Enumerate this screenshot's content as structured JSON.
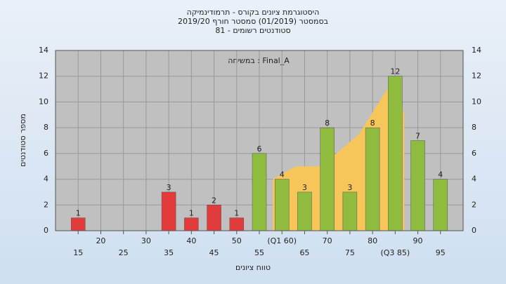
{
  "chart_data": {
    "type": "bar",
    "title": "היסטוגרמת ציונים בקורס - תרמודינמיקה",
    "subtitle": "בסמסטר (01/2019) סמסטר חורף 2019/20",
    "subtitle2": "סטודנטים רשומים - 81",
    "annotation": "במשיחה : Final_A",
    "x_label": "טווח ציונים",
    "y_label": "מספר סטודנטים",
    "x": [
      15,
      20,
      25,
      30,
      35,
      40,
      45,
      50,
      55,
      60,
      65,
      70,
      75,
      80,
      85,
      90,
      95
    ],
    "values": [
      1,
      0,
      0,
      0,
      3,
      1,
      2,
      1,
      6,
      4,
      3,
      8,
      3,
      8,
      12,
      7,
      4
    ],
    "colors": [
      "#e23b3b",
      "#e23b3b",
      "#e23b3b",
      "#e23b3b",
      "#e23b3b",
      "#e23b3b",
      "#e23b3b",
      "#e23b3b",
      "#8fbb3e",
      "#8fbb3e",
      "#8fbb3e",
      "#8fbb3e",
      "#8fbb3e",
      "#8fbb3e",
      "#8fbb3e",
      "#8fbb3e",
      "#8fbb3e"
    ],
    "area": {
      "color": "#f7c65a",
      "x": [
        58,
        63,
        68,
        72,
        77,
        85,
        87
      ],
      "values": [
        4,
        5,
        5,
        6,
        7.5,
        12,
        9
      ]
    },
    "xlim": [
      10,
      100
    ],
    "xticks": [
      15,
      20,
      25,
      30,
      35,
      40,
      45,
      50,
      55,
      {
        "value": 60,
        "label": "(Q1 60)"
      },
      65,
      70,
      75,
      80,
      {
        "value": 85,
        "label": "(Q3 85)"
      },
      90,
      95
    ],
    "ylim": [
      0,
      14
    ],
    "yticks": [
      0,
      2,
      4,
      6,
      8,
      10,
      12,
      14
    ],
    "grid": true
  }
}
